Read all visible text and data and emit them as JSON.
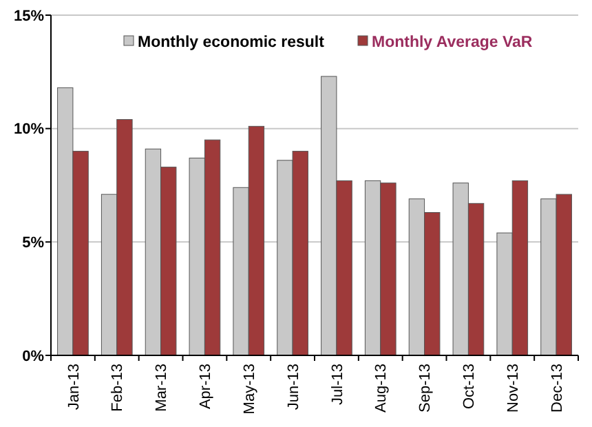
{
  "chart_data": {
    "type": "bar",
    "categories": [
      "Jan-13",
      "Feb-13",
      "Mar-13",
      "Apr-13",
      "May-13",
      "Jun-13",
      "Jul-13",
      "Aug-13",
      "Sep-13",
      "Oct-13",
      "Nov-13",
      "Dec-13"
    ],
    "series": [
      {
        "name": "Monthly economic result",
        "color": "#c8c8c8",
        "values": [
          11.8,
          7.1,
          9.1,
          8.7,
          7.4,
          8.6,
          12.3,
          7.7,
          6.9,
          7.6,
          5.4,
          6.9
        ]
      },
      {
        "name": "Monthly Average VaR",
        "color": "#9e3a3a",
        "values": [
          9.0,
          10.4,
          8.3,
          9.5,
          10.1,
          9.0,
          7.7,
          7.6,
          6.3,
          6.7,
          7.7,
          7.1
        ]
      }
    ],
    "ylim": [
      0,
      15
    ],
    "yticks": [
      {
        "value": 0,
        "label": "0%"
      },
      {
        "value": 5,
        "label": "5%"
      },
      {
        "value": 10,
        "label": "10%"
      },
      {
        "value": 15,
        "label": "15%"
      }
    ],
    "grid": "y",
    "legend": "top"
  }
}
